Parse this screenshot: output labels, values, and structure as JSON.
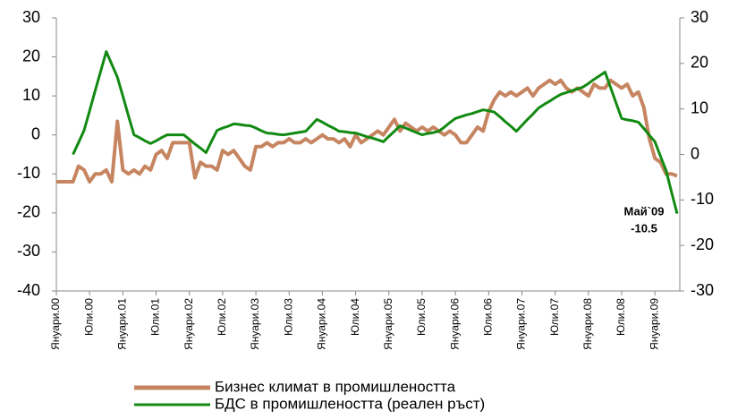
{
  "chart_data": {
    "type": "line",
    "categories": [
      "Януари.00",
      null,
      null,
      null,
      null,
      null,
      "Юли.00",
      null,
      null,
      null,
      null,
      null,
      "Януари.01",
      null,
      null,
      null,
      null,
      null,
      "Юли.01",
      null,
      null,
      null,
      null,
      null,
      "Януари.02",
      null,
      null,
      null,
      null,
      null,
      "Юли.02",
      null,
      null,
      null,
      null,
      null,
      "Януари.03",
      null,
      null,
      null,
      null,
      null,
      "Юли.03",
      null,
      null,
      null,
      null,
      null,
      "Януари.04",
      null,
      null,
      null,
      null,
      null,
      "Юли.04",
      null,
      null,
      null,
      null,
      null,
      "Януари.05",
      null,
      null,
      null,
      null,
      null,
      "Юли.05",
      null,
      null,
      null,
      null,
      null,
      "Януари.06",
      null,
      null,
      null,
      null,
      null,
      "Юли.06",
      null,
      null,
      null,
      null,
      null,
      "Януари.07",
      null,
      null,
      null,
      null,
      null,
      "Юли.07",
      null,
      null,
      null,
      null,
      null,
      "Януари.08",
      null,
      null,
      null,
      null,
      null,
      "Юли.08",
      null,
      null,
      null,
      null,
      null,
      "Януари.09",
      null,
      null,
      null,
      null
    ],
    "series": [
      {
        "name": "Бизнес климат в промишлеността",
        "color": "#c68560",
        "axis": "y",
        "values": [
          -12,
          -12,
          -12,
          -12,
          -8,
          -9,
          -12,
          -10,
          -10,
          -9,
          -12,
          3.5,
          -9,
          -10,
          -9,
          -10,
          -8,
          -9,
          -5,
          -4,
          -6,
          -2,
          -2,
          -2,
          -2,
          -11,
          -7,
          -8,
          -8,
          -9,
          -4,
          -5,
          -4,
          -6,
          -8,
          -9,
          -3,
          -3,
          -2,
          -3,
          -2,
          -2,
          -1,
          -2,
          -2,
          -1,
          -2,
          -1,
          0,
          -1,
          -1,
          -2,
          -1,
          -3,
          0,
          -2,
          -1,
          0,
          1,
          0,
          2,
          4,
          1,
          3,
          2,
          1,
          2,
          1,
          2,
          1,
          0,
          1,
          0,
          -2,
          -2,
          0,
          2,
          1,
          6,
          9,
          11,
          10,
          11,
          10,
          11,
          12,
          10,
          12,
          13,
          14,
          13,
          14,
          12,
          11,
          12,
          11,
          10,
          13,
          12,
          12,
          14,
          13,
          12,
          13,
          10,
          11,
          7,
          -1,
          -6,
          -7,
          -10,
          -10,
          -10.5
        ]
      },
      {
        "name": "БДС в промишлеността (реален ръст)",
        "color": "#128a12",
        "axis": "y2",
        "values": [
          null,
          null,
          null,
          0,
          2.6,
          5.3,
          9.6,
          14,
          18.3,
          22.6,
          19.8,
          17,
          12.8,
          8.5,
          4.3,
          3.7,
          3,
          2.4,
          3,
          3.7,
          4.3,
          4.3,
          4.3,
          4.3,
          3.3,
          2.3,
          1.4,
          0.4,
          2.9,
          5.3,
          5.8,
          6.2,
          6.7,
          6.6,
          6.4,
          6.3,
          5.8,
          5.2,
          4.7,
          4.6,
          4.4,
          4.3,
          4.5,
          4.7,
          4.9,
          5.1,
          6.4,
          7.7,
          7.1,
          6.4,
          5.8,
          5.1,
          5,
          4.8,
          4.7,
          4.3,
          3.9,
          3.6,
          3.2,
          2.8,
          4,
          5.1,
          6.3,
          5.8,
          5.3,
          4.8,
          4.3,
          4.6,
          4.8,
          5.1,
          6,
          7,
          7.9,
          8.3,
          8.7,
          9,
          9.4,
          9.8,
          9.6,
          9.3,
          8.3,
          7.2,
          6.2,
          5.1,
          6.4,
          7.7,
          8.9,
          10.2,
          11,
          11.7,
          12.5,
          13.2,
          13.6,
          14,
          14.4,
          14.8,
          15.6,
          16.5,
          17.3,
          18.1,
          14.7,
          11.3,
          7.9,
          7.6,
          7.4,
          7.1,
          5.7,
          4.2,
          2.8,
          -0.4,
          -3.5,
          -8.3,
          -13
        ]
      }
    ],
    "ylim": [
      -40,
      30
    ],
    "yticks": [
      -40,
      -30,
      -20,
      -10,
      0,
      10,
      20,
      30
    ],
    "y2lim": [
      -30,
      30
    ],
    "y2ticks": [
      -30,
      -20,
      -10,
      0,
      10,
      20,
      30
    ],
    "annotations": [
      "Май`09",
      "-10.5"
    ]
  }
}
